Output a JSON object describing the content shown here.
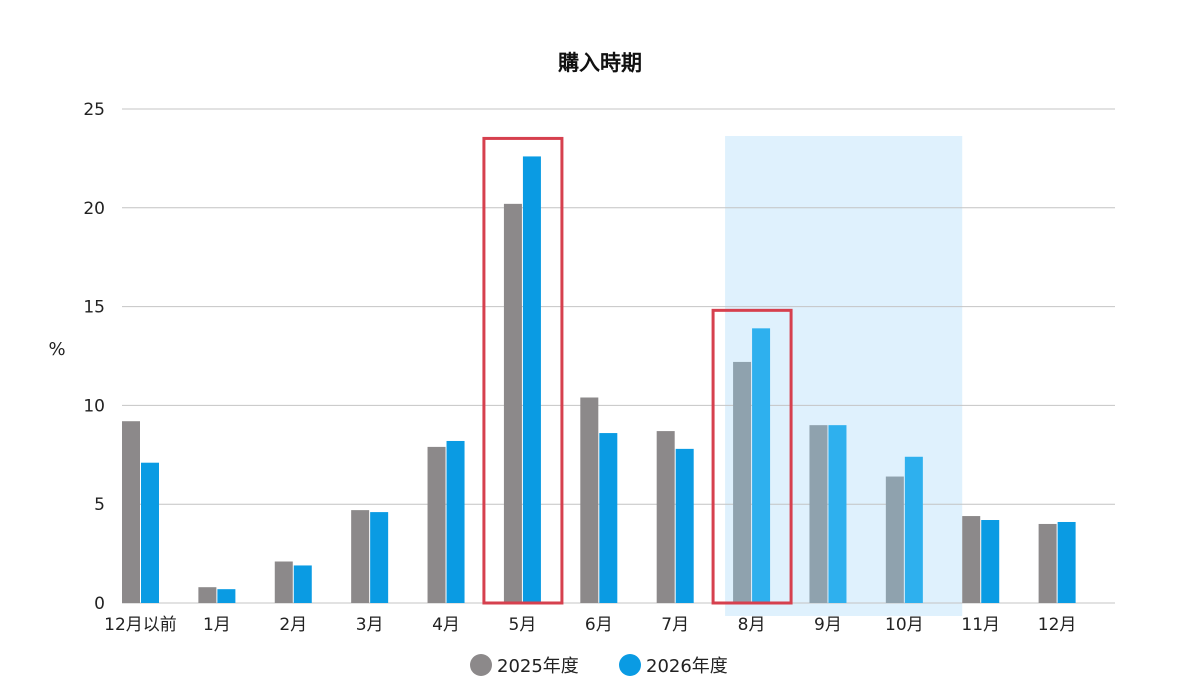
{
  "chart_data": {
    "type": "bar",
    "title": "購入時期",
    "ylabel": "%",
    "xlabel": "",
    "ylim": [
      0,
      25
    ],
    "yticks": [
      0,
      5,
      10,
      15,
      20,
      25
    ],
    "grid": true,
    "legend_position": "bottom",
    "categories": [
      "12月以前",
      "1月",
      "2月",
      "3月",
      "4月",
      "5月",
      "6月",
      "7月",
      "8月",
      "9月",
      "10月",
      "11月",
      "12月"
    ],
    "series": [
      {
        "name": "2025年度",
        "values": [
          9.2,
          0.8,
          2.1,
          4.7,
          7.9,
          20.2,
          10.4,
          8.7,
          12.2,
          9.0,
          6.4,
          4.4,
          4.0
        ]
      },
      {
        "name": "2026年度",
        "values": [
          7.1,
          0.7,
          1.9,
          4.6,
          8.2,
          22.6,
          8.6,
          7.8,
          13.9,
          9.0,
          7.4,
          4.2,
          4.1
        ]
      }
    ],
    "colors": {
      "series": [
        "#8c898a",
        "#0a9be3"
      ],
      "series_on_highlight": [
        "#8fa2ae",
        "#2eb0ee"
      ],
      "highlight_band": "#dff1fd",
      "emphasis_box": "#d6404e",
      "grid": "#c4c4c4"
    },
    "highlight_range": [
      "8月",
      "10月"
    ],
    "emphasis_categories": [
      "5月",
      "8月"
    ]
  }
}
